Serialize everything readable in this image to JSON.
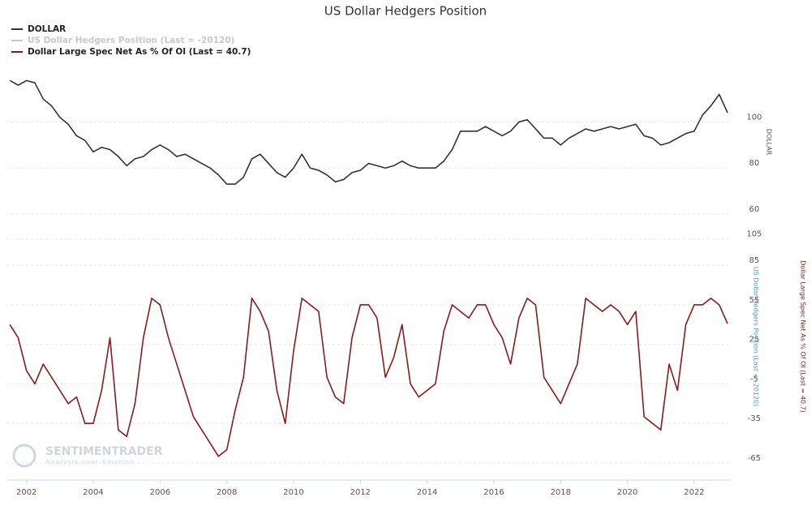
{
  "chart_data": [
    {
      "type": "line",
      "title": "US Dollar Hedgers Position",
      "x": [
        2001.5,
        2001.75,
        2002,
        2002.25,
        2002.5,
        2002.75,
        2003,
        2003.25,
        2003.5,
        2003.75,
        2004,
        2004.25,
        2004.5,
        2004.75,
        2005,
        2005.25,
        2005.5,
        2005.75,
        2006,
        2006.25,
        2006.5,
        2006.75,
        2007,
        2007.25,
        2007.5,
        2007.75,
        2008,
        2008.25,
        2008.5,
        2008.75,
        2009,
        2009.25,
        2009.5,
        2009.75,
        2010,
        2010.25,
        2010.5,
        2010.75,
        2011,
        2011.25,
        2011.5,
        2011.75,
        2012,
        2012.25,
        2012.5,
        2012.75,
        2013,
        2013.25,
        2013.5,
        2013.75,
        2014,
        2014.25,
        2014.5,
        2014.75,
        2015,
        2015.25,
        2015.5,
        2015.75,
        2016,
        2016.25,
        2016.5,
        2016.75,
        2017,
        2017.25,
        2017.5,
        2017.75,
        2018,
        2018.25,
        2018.5,
        2018.75,
        2019,
        2019.25,
        2019.5,
        2019.75,
        2020,
        2020.25,
        2020.5,
        2020.75,
        2021,
        2021.25,
        2021.5,
        2021.75,
        2022,
        2022.25,
        2022.5,
        2022.75,
        2023
      ],
      "series": [
        {
          "name": "DOLLAR",
          "color": "#333333",
          "values": [
            118,
            116,
            118,
            117,
            110,
            107,
            102,
            99,
            94,
            92,
            87,
            89,
            88,
            85,
            81,
            84,
            85,
            88,
            90,
            88,
            85,
            86,
            84,
            82,
            80,
            77,
            73,
            73,
            76,
            84,
            86,
            82,
            78,
            76,
            80,
            86,
            80,
            79,
            77,
            74,
            75,
            78,
            79,
            82,
            81,
            80,
            81,
            83,
            81,
            80,
            80,
            80,
            83,
            88,
            96,
            96,
            96,
            98,
            96,
            94,
            96,
            100,
            101,
            97,
            93,
            93,
            90,
            93,
            95,
            97,
            96,
            97,
            98,
            97,
            98,
            99,
            94,
            93,
            90,
            91,
            93,
            95,
            96,
            103,
            107,
            112,
            104
          ]
        }
      ],
      "xlim": [
        2001.4,
        2023.07
      ],
      "ylim": [
        60,
        122
      ],
      "yticks": [
        60,
        80,
        100
      ],
      "grid": true
    },
    {
      "type": "line",
      "x": [
        2001.5,
        2001.75,
        2002,
        2002.25,
        2002.5,
        2002.75,
        2003,
        2003.25,
        2003.5,
        2003.75,
        2004,
        2004.25,
        2004.5,
        2004.75,
        2005,
        2005.25,
        2005.5,
        2005.75,
        2006,
        2006.25,
        2006.5,
        2006.75,
        2007,
        2007.25,
        2007.5,
        2007.75,
        2008,
        2008.25,
        2008.5,
        2008.75,
        2009,
        2009.25,
        2009.5,
        2009.75,
        2010,
        2010.25,
        2010.5,
        2010.75,
        2011,
        2011.25,
        2011.5,
        2011.75,
        2012,
        2012.25,
        2012.5,
        2012.75,
        2013,
        2013.25,
        2013.5,
        2013.75,
        2014,
        2014.25,
        2014.5,
        2014.75,
        2015,
        2015.25,
        2015.5,
        2015.75,
        2016,
        2016.25,
        2016.5,
        2016.75,
        2017,
        2017.25,
        2017.5,
        2017.75,
        2018,
        2018.25,
        2018.5,
        2018.75,
        2019,
        2019.25,
        2019.5,
        2019.75,
        2020,
        2020.25,
        2020.5,
        2020.75,
        2021,
        2021.25,
        2021.5,
        2021.75,
        2022,
        2022.25,
        2022.5,
        2022.75,
        2023
      ],
      "series": [
        {
          "name": "Dollar Large Spec Net As % Of OI (Last = 40.7)",
          "color": "#8b1a1a",
          "values": [
            40,
            30,
            5,
            -5,
            10,
            0,
            -10,
            -20,
            -15,
            -35,
            -35,
            -10,
            30,
            -40,
            -45,
            -20,
            30,
            60,
            55,
            30,
            10,
            -10,
            -30,
            -40,
            -50,
            -60,
            -55,
            -25,
            0,
            60,
            50,
            35,
            -10,
            -35,
            20,
            60,
            55,
            50,
            0,
            -15,
            -20,
            30,
            55,
            55,
            45,
            0,
            15,
            40,
            -5,
            -15,
            -10,
            -5,
            35,
            55,
            50,
            45,
            55,
            55,
            40,
            30,
            10,
            45,
            60,
            55,
            0,
            -10,
            -20,
            -5,
            10,
            60,
            55,
            50,
            55,
            50,
            40,
            50,
            -30,
            -35,
            -40,
            10,
            -10,
            40,
            55,
            55,
            60,
            55,
            40.7
          ]
        }
      ],
      "y2_label": "US Dollar Hedgers Position (Last = -20120)",
      "y2_label_color": "#4a9fd8",
      "hidden_legend_color": "#c8c8c8",
      "xlim": [
        2001.4,
        2023.07
      ],
      "ylim": [
        -78,
        111
      ],
      "yticks": [
        -65,
        -35,
        -5,
        25,
        55,
        85,
        105
      ],
      "xticks": [
        2002,
        2004,
        2006,
        2008,
        2010,
        2012,
        2014,
        2016,
        2018,
        2020,
        2022
      ],
      "grid": true,
      "watermark": "SENTIMENTRADER",
      "watermark_subtitle": "Analysis over Emotion"
    }
  ]
}
